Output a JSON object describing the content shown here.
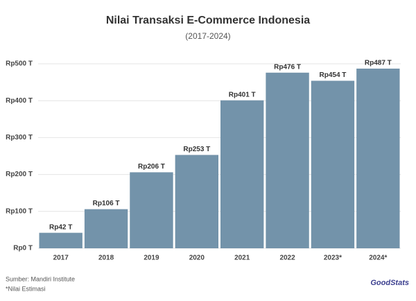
{
  "chart_data": {
    "type": "bar",
    "title": "Nilai Transaksi E-Commerce Indonesia",
    "subtitle": "(2017-2024)",
    "categories": [
      "2017",
      "2018",
      "2019",
      "2020",
      "2021",
      "2022",
      "2023*",
      "2024*"
    ],
    "values": [
      42,
      106,
      206,
      253,
      401,
      476,
      454,
      487
    ],
    "value_labels": [
      "Rp42 T",
      "Rp106 T",
      "Rp206 T",
      "Rp253 T",
      "Rp401 T",
      "Rp476 T",
      "Rp454 T",
      "Rp487 T"
    ],
    "color": "#7393aa",
    "ylim": [
      0,
      500
    ],
    "yticks": [
      {
        "value": 0,
        "label": "Rp0 T"
      },
      {
        "value": 100,
        "label": "Rp100 T"
      },
      {
        "value": 200,
        "label": "Rp200 T"
      },
      {
        "value": 300,
        "label": "Rp300 T"
      },
      {
        "value": 400,
        "label": "Rp400 T"
      },
      {
        "value": 500,
        "label": "Rp500 T"
      }
    ],
    "grid": true,
    "source": "Sumber: Mandiri Institute",
    "note": "*Nilai Estimasi",
    "logo": "GoodStats"
  }
}
